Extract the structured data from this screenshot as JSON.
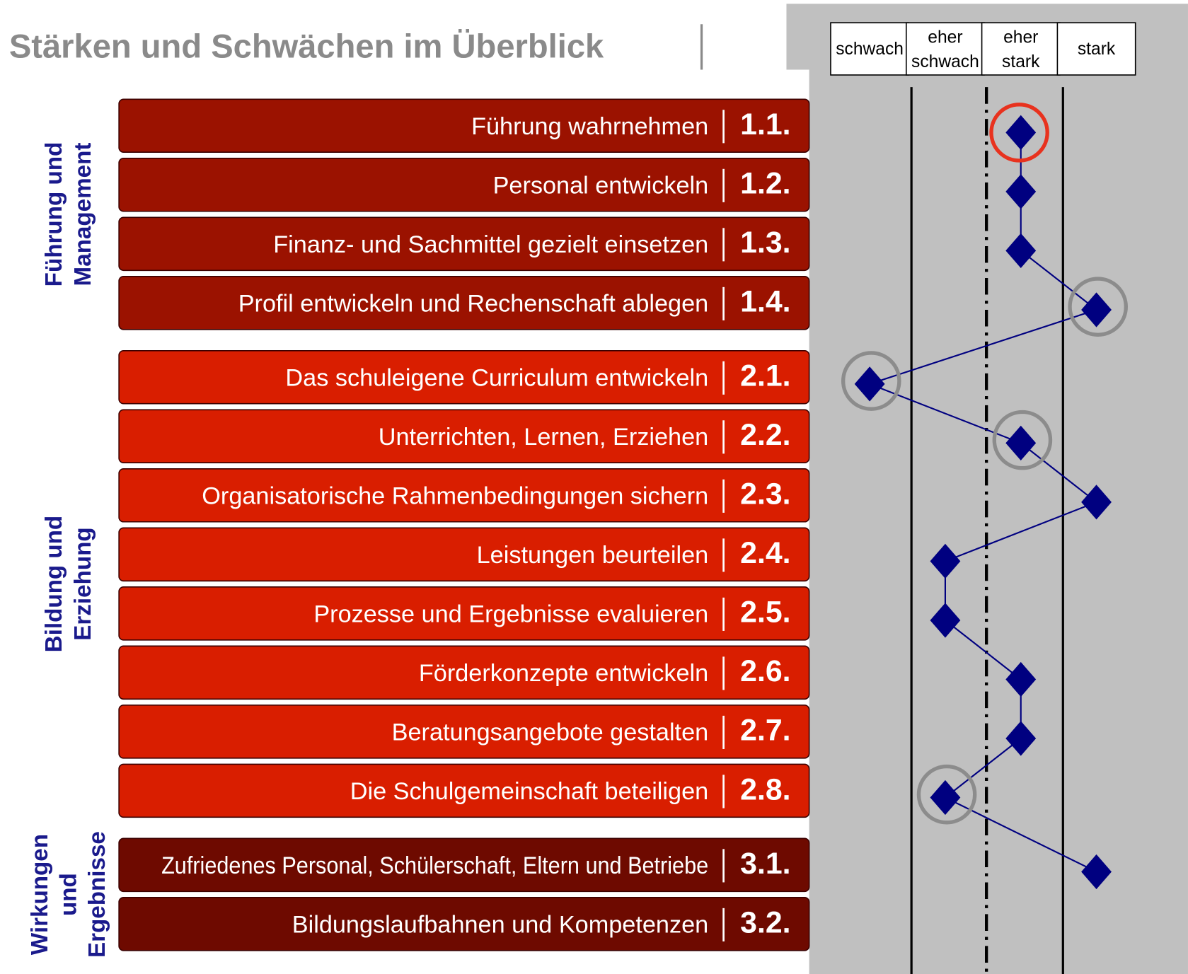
{
  "chart_data": {
    "type": "profile",
    "title": "Stärken und Schwächen im Überblick",
    "levels": [
      "schwach",
      "eher schwach",
      "eher stark",
      "stark"
    ],
    "xlim": [
      0.5,
      4.5
    ],
    "marker_color": "#000080",
    "groups": [
      {
        "label": "Führung und Management",
        "color": "#9b1200",
        "codes": [
          "1.1.",
          "1.2.",
          "1.3.",
          "1.4."
        ],
        "categories": [
          "Führung wahrnehmen",
          "Personal entwickeln",
          "Finanz- und Sachmittel gezielt einsetzen",
          "Profil entwickeln und Rechenschaft ablegen"
        ],
        "values": [
          3,
          3,
          3,
          4
        ],
        "highlight_colors": [
          "#e8321e",
          null,
          null,
          "#8c8c8c"
        ]
      },
      {
        "label": "Bildung und Erziehung",
        "color": "#d91e00",
        "codes": [
          "2.1.",
          "2.2.",
          "2.3.",
          "2.4.",
          "2.5.",
          "2.6.",
          "2.7.",
          "2.8."
        ],
        "categories": [
          "Das schuleigene Curriculum entwickeln",
          "Unterrichten, Lernen, Erziehen",
          "Organisatorische Rahmenbedingungen sichern",
          "Leistungen beurteilen",
          "Prozesse und Ergebnisse evaluieren",
          "Förderkonzepte entwickeln",
          "Beratungsangebote gestalten",
          "Die Schulgemeinschaft beteiligen"
        ],
        "values": [
          1,
          3,
          4,
          2,
          2,
          3,
          3,
          2
        ],
        "highlight_colors": [
          "#8c8c8c",
          "#8c8c8c",
          null,
          null,
          null,
          null,
          null,
          "#8c8c8c"
        ]
      },
      {
        "label": "Wirkungen und Ergebnisse",
        "color": "#6e0a00",
        "codes": [
          "3.1.",
          "3.2."
        ],
        "categories": [
          "Zufriedenes Personal, Schülerschaft, Eltern und Betriebe",
          "Bildungslaufbahnen und Kompetenzen"
        ],
        "values": [
          4,
          null
        ],
        "highlight_colors": [
          null,
          null
        ]
      }
    ]
  }
}
